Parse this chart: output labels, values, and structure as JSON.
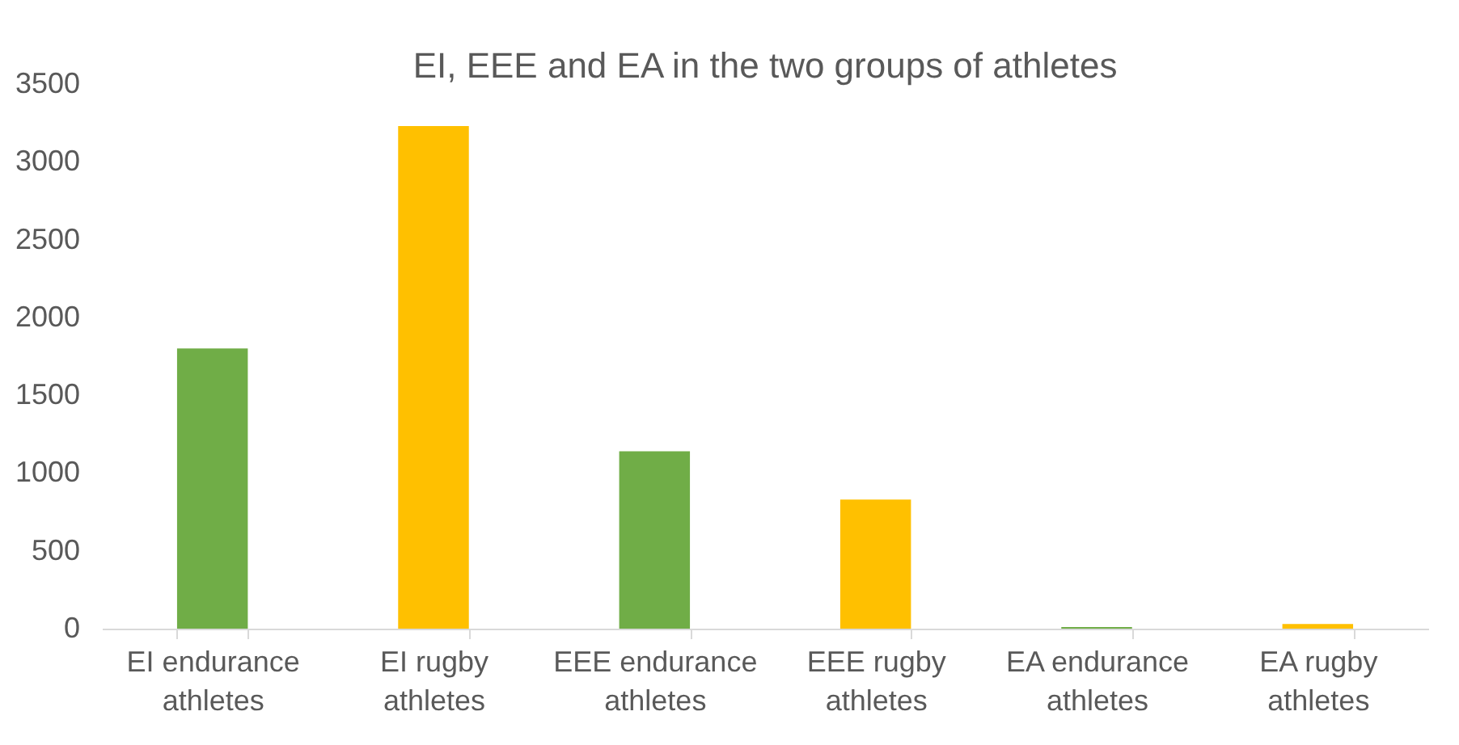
{
  "chart_data": {
    "type": "bar",
    "title": "EI, EEE and EA in the two groups of athletes",
    "categories": [
      "EI endurance athletes",
      "EI rugby athletes",
      "EEE endurance athletes",
      "EEE rugby athletes",
      "EA endurance athletes",
      "EA rugby athletes"
    ],
    "values": [
      1800,
      3230,
      1140,
      830,
      10,
      30
    ],
    "colors": [
      "#70ad47",
      "#ffc000",
      "#70ad47",
      "#ffc000",
      "#70ad47",
      "#ffc000"
    ],
    "ylim": [
      0,
      3500
    ],
    "yticks": [
      0,
      500,
      1000,
      1500,
      2000,
      2500,
      3000,
      3500
    ],
    "grid": false
  }
}
